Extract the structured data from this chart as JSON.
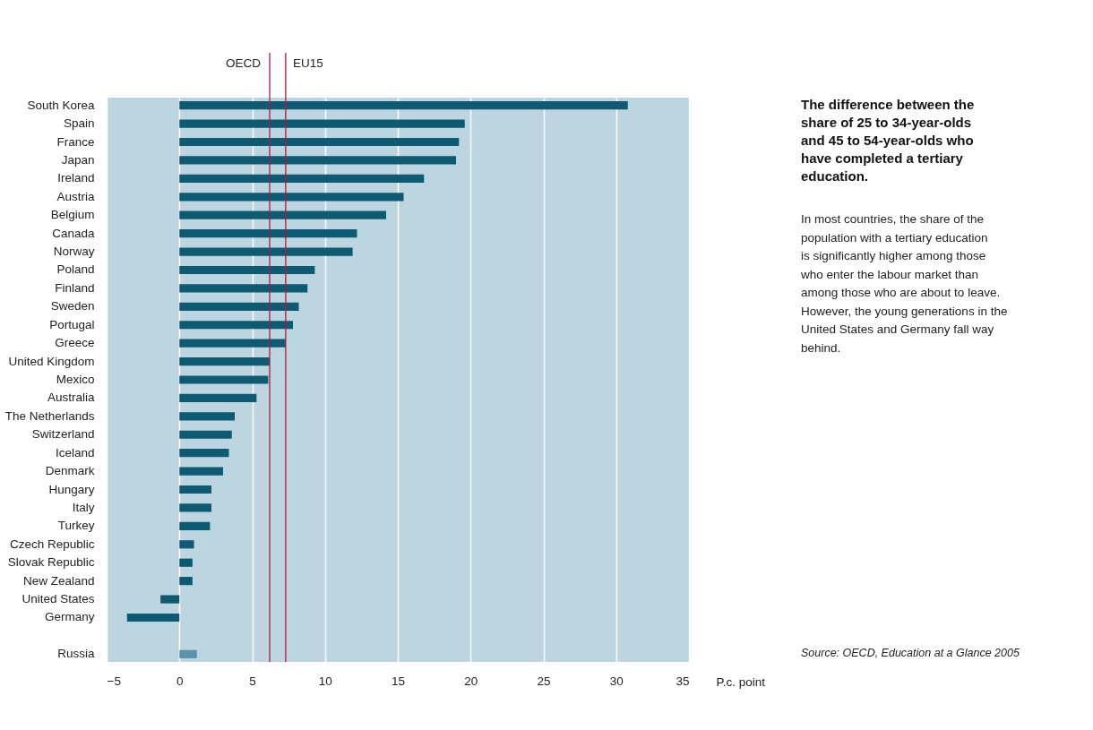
{
  "chart_data": {
    "type": "bar",
    "orientation": "horizontal",
    "title": "The difference between the share of 25 to 34-year-olds and 45 to 54-year-olds who have completed a tertiary education.",
    "subtitle": "In most countries, the share of the population with a tertiary education is significantly higher among those who enter the labour market than among those who are about to leave. However, the young generations in the United States and Germany fall way behind.",
    "xlabel": "P.c. point",
    "categories": [
      "South Korea",
      "Spain",
      "France",
      "Japan",
      "Ireland",
      "Austria",
      "Belgium",
      "Canada",
      "Norway",
      "Poland",
      "Finland",
      "Sweden",
      "Portugal",
      "Greece",
      "United Kingdom",
      "Mexico",
      "Australia",
      "The Netherlands",
      "Switzerland",
      "Iceland",
      "Denmark",
      "Hungary",
      "Italy",
      "Turkey",
      "Czech Republic",
      "Slovak Republic",
      "New Zealand",
      "United States",
      "Germany",
      null,
      "Russia"
    ],
    "values": [
      30.8,
      19.6,
      19.2,
      19.0,
      16.8,
      15.4,
      14.2,
      12.2,
      11.9,
      9.3,
      8.8,
      8.2,
      7.8,
      7.3,
      6.2,
      6.1,
      5.3,
      3.8,
      3.6,
      3.4,
      3.0,
      2.2,
      2.2,
      2.1,
      1.0,
      0.9,
      0.9,
      -1.3,
      -3.6,
      null,
      1.2
    ],
    "colors": [
      "#0d5a72",
      "#0d5a72",
      "#0d5a72",
      "#0d5a72",
      "#0d5a72",
      "#0d5a72",
      "#0d5a72",
      "#0d5a72",
      "#0d5a72",
      "#0d5a72",
      "#0d5a72",
      "#0d5a72",
      "#0d5a72",
      "#0d5a72",
      "#0d5a72",
      "#0d5a72",
      "#0d5a72",
      "#0d5a72",
      "#0d5a72",
      "#0d5a72",
      "#0d5a72",
      "#0d5a72",
      "#0d5a72",
      "#0d5a72",
      "#0d5a72",
      "#0d5a72",
      "#0d5a72",
      "#0d5a72",
      "#0d5a72",
      "#0d5a72",
      "#5a93aa"
    ],
    "xlim": [
      -5,
      35
    ],
    "xticks": [
      -5,
      0,
      5,
      10,
      15,
      20,
      25,
      30,
      35
    ],
    "grid": "x",
    "ref_lines": [
      {
        "axis": "x",
        "value": 6.2,
        "label": "OECD",
        "color": "#a3203a"
      },
      {
        "axis": "x",
        "value": 7.3,
        "label": "EU15",
        "color": "#a3203a"
      }
    ],
    "annotations": [
      "Source: OECD, Education at a Glance 2005"
    ]
  }
}
